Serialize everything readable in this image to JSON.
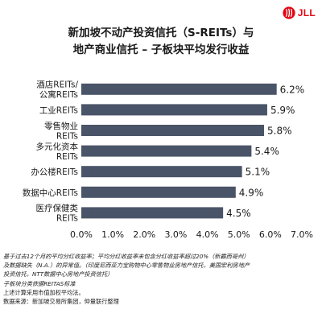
{
  "brand": {
    "name": "JLL",
    "accent": "#E30613"
  },
  "title_lines": [
    "新加坡不动产投资信托（S-REITs）与",
    "地产商业信托 – 子板块平均发行收益"
  ],
  "chart_data": {
    "type": "bar",
    "orientation": "horizontal",
    "categories": [
      [
        "酒店REITs/",
        "公寓REITs"
      ],
      [
        "工业REITs"
      ],
      [
        "零售物业",
        "REITs"
      ],
      [
        "多元化资本",
        "REITs"
      ],
      [
        "办公楼REITs"
      ],
      [
        "数据中心REITs"
      ],
      [
        "医疗保健类",
        "REITs"
      ]
    ],
    "values": [
      6.2,
      5.9,
      5.8,
      5.4,
      5.1,
      4.9,
      4.5
    ],
    "value_labels": [
      "6.2%",
      "5.9%",
      "5.8%",
      "5.4%",
      "5.1%",
      "4.9%",
      "4.5%"
    ],
    "xlim": [
      0,
      7
    ],
    "xticks": [
      0,
      1,
      2,
      3,
      4,
      5,
      6,
      7
    ],
    "xtick_labels": [
      "0.0%",
      "1.0%",
      "2.0%",
      "3.0%",
      "4.0%",
      "5.0%",
      "6.0%",
      "7.0%"
    ],
    "bar_color": "#4A5468",
    "grid": false,
    "legend": "none"
  },
  "notes": [
    "基于过去12个月的平均分红收益率；平均分红收益率未包含分红收益率超过20%（新霸西哥州）",
    "及数据缺失（N.A.）的异常值。（印度尼西亚力宝购物中心零售物业房地产信托，美国宏利房地产",
    "投资信托，NTT数据中心房地产投资信托）",
    "子板块分类依据REITAS标准",
    "上述计算采用市值加权平均法。",
    "数据来源：新加坡交易所集团，仲量联行整理"
  ]
}
